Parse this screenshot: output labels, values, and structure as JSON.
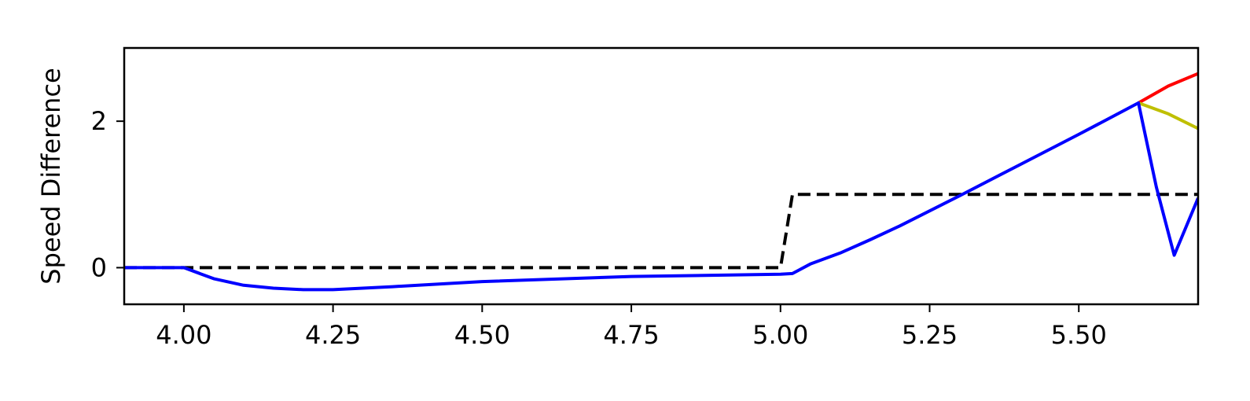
{
  "chart_data": {
    "type": "line",
    "title": "",
    "xlabel": "",
    "ylabel": "Speed Difference",
    "xlim": [
      3.9,
      5.7
    ],
    "ylim": [
      -0.5,
      3.0
    ],
    "grid": false,
    "legend": "none",
    "x_ticks": [
      {
        "value": 4.0,
        "label": "4.00"
      },
      {
        "value": 4.25,
        "label": "4.25"
      },
      {
        "value": 4.5,
        "label": "4.50"
      },
      {
        "value": 4.75,
        "label": "4.75"
      },
      {
        "value": 5.0,
        "label": "5.00"
      },
      {
        "value": 5.25,
        "label": "5.25"
      },
      {
        "value": 5.5,
        "label": "5.50"
      }
    ],
    "y_ticks": [
      {
        "value": 0,
        "label": "0"
      },
      {
        "value": 2,
        "label": "2"
      }
    ],
    "series": [
      {
        "color": "#000000",
        "style": "dashed",
        "x": [
          3.9,
          5.0,
          5.02,
          5.7
        ],
        "y": [
          0.0,
          0.0,
          1.0,
          1.0
        ]
      },
      {
        "color": "#ff0000",
        "style": "solid",
        "x": [
          5.6,
          5.65,
          5.7
        ],
        "y": [
          2.25,
          2.48,
          2.65
        ]
      },
      {
        "color": "#bfbf00",
        "style": "solid",
        "x": [
          5.6,
          5.65,
          5.7
        ],
        "y": [
          2.25,
          2.1,
          1.9
        ]
      },
      {
        "color": "#0000ff",
        "style": "solid",
        "x": [
          3.9,
          4.0,
          4.05,
          4.1,
          4.15,
          4.2,
          4.25,
          4.35,
          4.5,
          4.75,
          5.0,
          5.02,
          5.05,
          5.1,
          5.15,
          5.2,
          5.3,
          5.4,
          5.5,
          5.6,
          5.63,
          5.66,
          5.7
        ],
        "y": [
          0.0,
          0.0,
          -0.15,
          -0.24,
          -0.28,
          -0.3,
          -0.3,
          -0.26,
          -0.19,
          -0.12,
          -0.09,
          -0.08,
          0.05,
          0.2,
          0.38,
          0.57,
          0.98,
          1.4,
          1.82,
          2.25,
          1.1,
          0.17,
          0.95
        ]
      }
    ]
  }
}
